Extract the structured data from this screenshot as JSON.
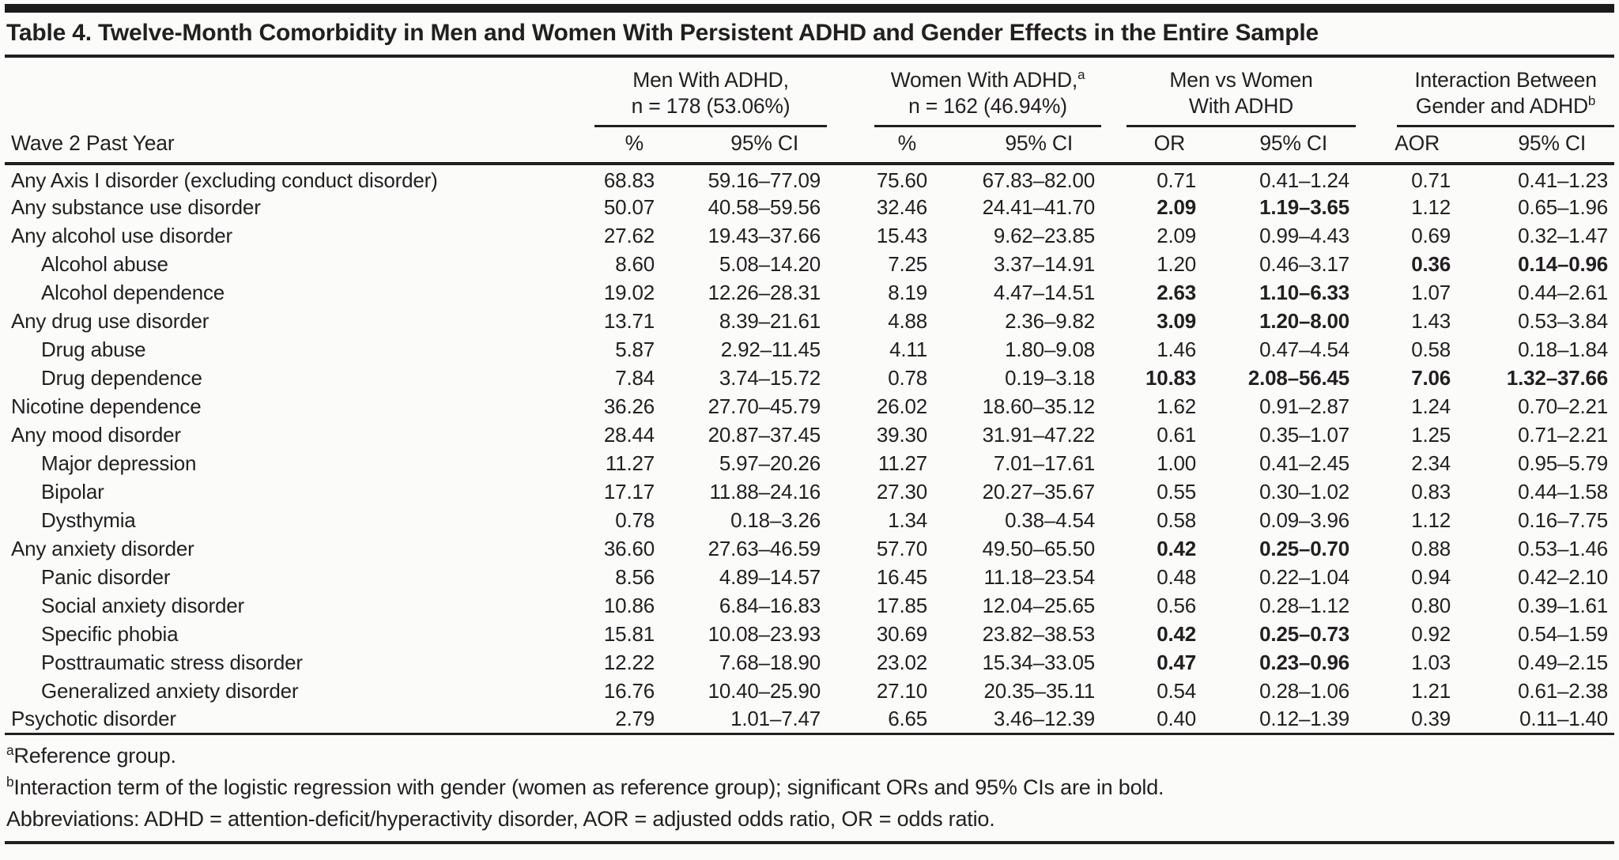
{
  "title": "Table 4. Twelve-Month Comorbidity in Men and Women With Persistent ADHD and Gender Effects in the Entire Sample",
  "colors": {
    "text": "#231f20",
    "rule": "#231f20",
    "background": "#fbfbfa"
  },
  "table": {
    "row_header": "Wave 2 Past Year",
    "groups": [
      {
        "line1": "Men With ADHD,",
        "line1_sup": "",
        "line2": "n = 178 (53.06%)",
        "line2_sup": "",
        "col1": "%",
        "col2": "95% CI"
      },
      {
        "line1": "Women With ADHD,",
        "line1_sup": "a",
        "line2": "n = 162 (46.94%)",
        "line2_sup": "",
        "col1": "%",
        "col2": "95% CI"
      },
      {
        "line1": "Men vs Women",
        "line1_sup": "",
        "line2": "With ADHD",
        "line2_sup": "",
        "col1": "OR",
        "col2": "95% CI"
      },
      {
        "line1": "Interaction Between",
        "line1_sup": "",
        "line2": "Gender and ADHD",
        "line2_sup": "b",
        "col1": "AOR",
        "col2": "95% CI"
      }
    ],
    "rows": [
      {
        "label": "Any Axis I disorder (excluding conduct disorder)",
        "indent": false,
        "values": [
          "68.83",
          "59.16–77.09",
          "75.60",
          "67.83–82.00",
          "0.71",
          "0.41–1.24",
          "0.71",
          "0.41–1.23"
        ],
        "bold_or": false,
        "bold_aor": false
      },
      {
        "label": "Any substance use disorder",
        "indent": false,
        "values": [
          "50.07",
          "40.58–59.56",
          "32.46",
          "24.41–41.70",
          "2.09",
          "1.19–3.65",
          "1.12",
          "0.65–1.96"
        ],
        "bold_or": true,
        "bold_aor": false
      },
      {
        "label": "Any alcohol use disorder",
        "indent": false,
        "values": [
          "27.62",
          "19.43–37.66",
          "15.43",
          "9.62–23.85",
          "2.09",
          "0.99–4.43",
          "0.69",
          "0.32–1.47"
        ],
        "bold_or": false,
        "bold_aor": false
      },
      {
        "label": "Alcohol abuse",
        "indent": true,
        "values": [
          "8.60",
          "5.08–14.20",
          "7.25",
          "3.37–14.91",
          "1.20",
          "0.46–3.17",
          "0.36",
          "0.14–0.96"
        ],
        "bold_or": false,
        "bold_aor": true
      },
      {
        "label": "Alcohol dependence",
        "indent": true,
        "values": [
          "19.02",
          "12.26–28.31",
          "8.19",
          "4.47–14.51",
          "2.63",
          "1.10–6.33",
          "1.07",
          "0.44–2.61"
        ],
        "bold_or": true,
        "bold_aor": false
      },
      {
        "label": "Any drug use disorder",
        "indent": false,
        "values": [
          "13.71",
          "8.39–21.61",
          "4.88",
          "2.36–9.82",
          "3.09",
          "1.20–8.00",
          "1.43",
          "0.53–3.84"
        ],
        "bold_or": true,
        "bold_aor": false
      },
      {
        "label": "Drug abuse",
        "indent": true,
        "values": [
          "5.87",
          "2.92–11.45",
          "4.11",
          "1.80–9.08",
          "1.46",
          "0.47–4.54",
          "0.58",
          "0.18–1.84"
        ],
        "bold_or": false,
        "bold_aor": false
      },
      {
        "label": "Drug dependence",
        "indent": true,
        "values": [
          "7.84",
          "3.74–15.72",
          "0.78",
          "0.19–3.18",
          "10.83",
          "2.08–56.45",
          "7.06",
          "1.32–37.66"
        ],
        "bold_or": true,
        "bold_aor": true
      },
      {
        "label": "Nicotine dependence",
        "indent": false,
        "values": [
          "36.26",
          "27.70–45.79",
          "26.02",
          "18.60–35.12",
          "1.62",
          "0.91–2.87",
          "1.24",
          "0.70–2.21"
        ],
        "bold_or": false,
        "bold_aor": false
      },
      {
        "label": "Any mood disorder",
        "indent": false,
        "values": [
          "28.44",
          "20.87–37.45",
          "39.30",
          "31.91–47.22",
          "0.61",
          "0.35–1.07",
          "1.25",
          "0.71–2.21"
        ],
        "bold_or": false,
        "bold_aor": false
      },
      {
        "label": "Major depression",
        "indent": true,
        "values": [
          "11.27",
          "5.97–20.26",
          "11.27",
          "7.01–17.61",
          "1.00",
          "0.41–2.45",
          "2.34",
          "0.95–5.79"
        ],
        "bold_or": false,
        "bold_aor": false
      },
      {
        "label": "Bipolar",
        "indent": true,
        "values": [
          "17.17",
          "11.88–24.16",
          "27.30",
          "20.27–35.67",
          "0.55",
          "0.30–1.02",
          "0.83",
          "0.44–1.58"
        ],
        "bold_or": false,
        "bold_aor": false
      },
      {
        "label": "Dysthymia",
        "indent": true,
        "values": [
          "0.78",
          "0.18–3.26",
          "1.34",
          "0.38–4.54",
          "0.58",
          "0.09–3.96",
          "1.12",
          "0.16–7.75"
        ],
        "bold_or": false,
        "bold_aor": false
      },
      {
        "label": "Any anxiety disorder",
        "indent": false,
        "values": [
          "36.60",
          "27.63–46.59",
          "57.70",
          "49.50–65.50",
          "0.42",
          "0.25–0.70",
          "0.88",
          "0.53–1.46"
        ],
        "bold_or": true,
        "bold_aor": false
      },
      {
        "label": "Panic disorder",
        "indent": true,
        "values": [
          "8.56",
          "4.89–14.57",
          "16.45",
          "11.18–23.54",
          "0.48",
          "0.22–1.04",
          "0.94",
          "0.42–2.10"
        ],
        "bold_or": false,
        "bold_aor": false
      },
      {
        "label": "Social anxiety disorder",
        "indent": true,
        "values": [
          "10.86",
          "6.84–16.83",
          "17.85",
          "12.04–25.65",
          "0.56",
          "0.28–1.12",
          "0.80",
          "0.39–1.61"
        ],
        "bold_or": false,
        "bold_aor": false
      },
      {
        "label": "Specific phobia",
        "indent": true,
        "values": [
          "15.81",
          "10.08–23.93",
          "30.69",
          "23.82–38.53",
          "0.42",
          "0.25–0.73",
          "0.92",
          "0.54–1.59"
        ],
        "bold_or": true,
        "bold_aor": false
      },
      {
        "label": "Posttraumatic stress disorder",
        "indent": true,
        "values": [
          "12.22",
          "7.68–18.90",
          "23.02",
          "15.34–33.05",
          "0.47",
          "0.23–0.96",
          "1.03",
          "0.49–2.15"
        ],
        "bold_or": true,
        "bold_aor": false
      },
      {
        "label": "Generalized anxiety disorder",
        "indent": true,
        "values": [
          "16.76",
          "10.40–25.90",
          "27.10",
          "20.35–35.11",
          "0.54",
          "0.28–1.06",
          "1.21",
          "0.61–2.38"
        ],
        "bold_or": false,
        "bold_aor": false
      },
      {
        "label": "Psychotic disorder",
        "indent": false,
        "values": [
          "2.79",
          "1.01–7.47",
          "6.65",
          "3.46–12.39",
          "0.40",
          "0.12–1.39",
          "0.39",
          "0.11–1.40"
        ],
        "bold_or": false,
        "bold_aor": false
      }
    ]
  },
  "footnotes": [
    {
      "sup": "a",
      "text": "Reference group."
    },
    {
      "sup": "b",
      "text": "Interaction term of the logistic regression with gender (women as reference group); significant ORs and 95% CIs are in bold."
    },
    {
      "sup": "",
      "text": "Abbreviations: ADHD = attention-deficit/hyperactivity disorder, AOR = adjusted odds ratio, OR = odds ratio."
    }
  ]
}
